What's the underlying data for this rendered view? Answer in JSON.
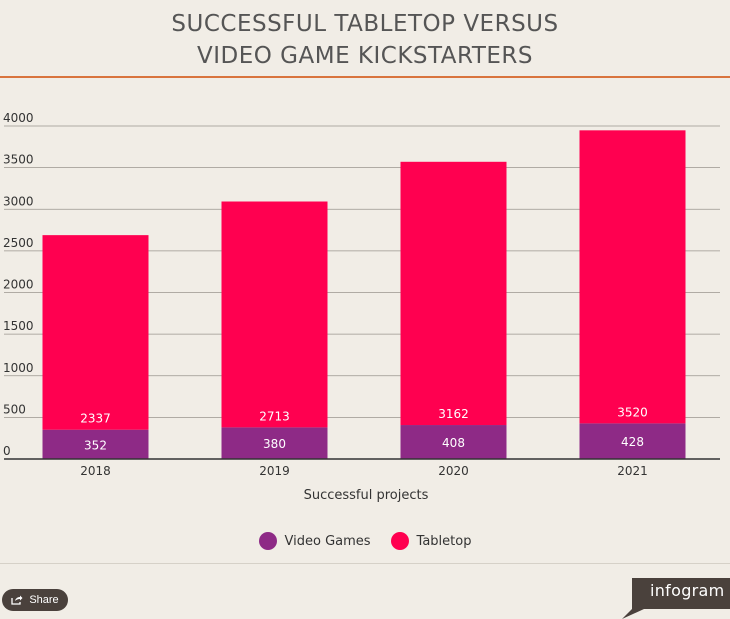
{
  "title_line1": "SUCCESSFUL TABLETOP VERSUS",
  "title_line2": "VIDEO GAME KICKSTARTERS",
  "share_label": "Share",
  "brand": "infogram",
  "colors": {
    "video_games": "#8e2a86",
    "tabletop": "#ff0050"
  },
  "chart_data": {
    "type": "bar",
    "stacked": true,
    "categories": [
      "2018",
      "2019",
      "2020",
      "2021"
    ],
    "series": [
      {
        "name": "Video Games",
        "values": [
          352,
          380,
          408,
          428
        ]
      },
      {
        "name": "Tabletop",
        "values": [
          2337,
          2713,
          3162,
          3520
        ]
      }
    ],
    "xlabel": "Successful projects",
    "ylabel": "",
    "ylim": [
      0,
      4000
    ],
    "yticks": [
      0,
      500,
      1000,
      1500,
      2000,
      2500,
      3000,
      3500,
      4000
    ],
    "grid": true,
    "legend": "bottom"
  }
}
